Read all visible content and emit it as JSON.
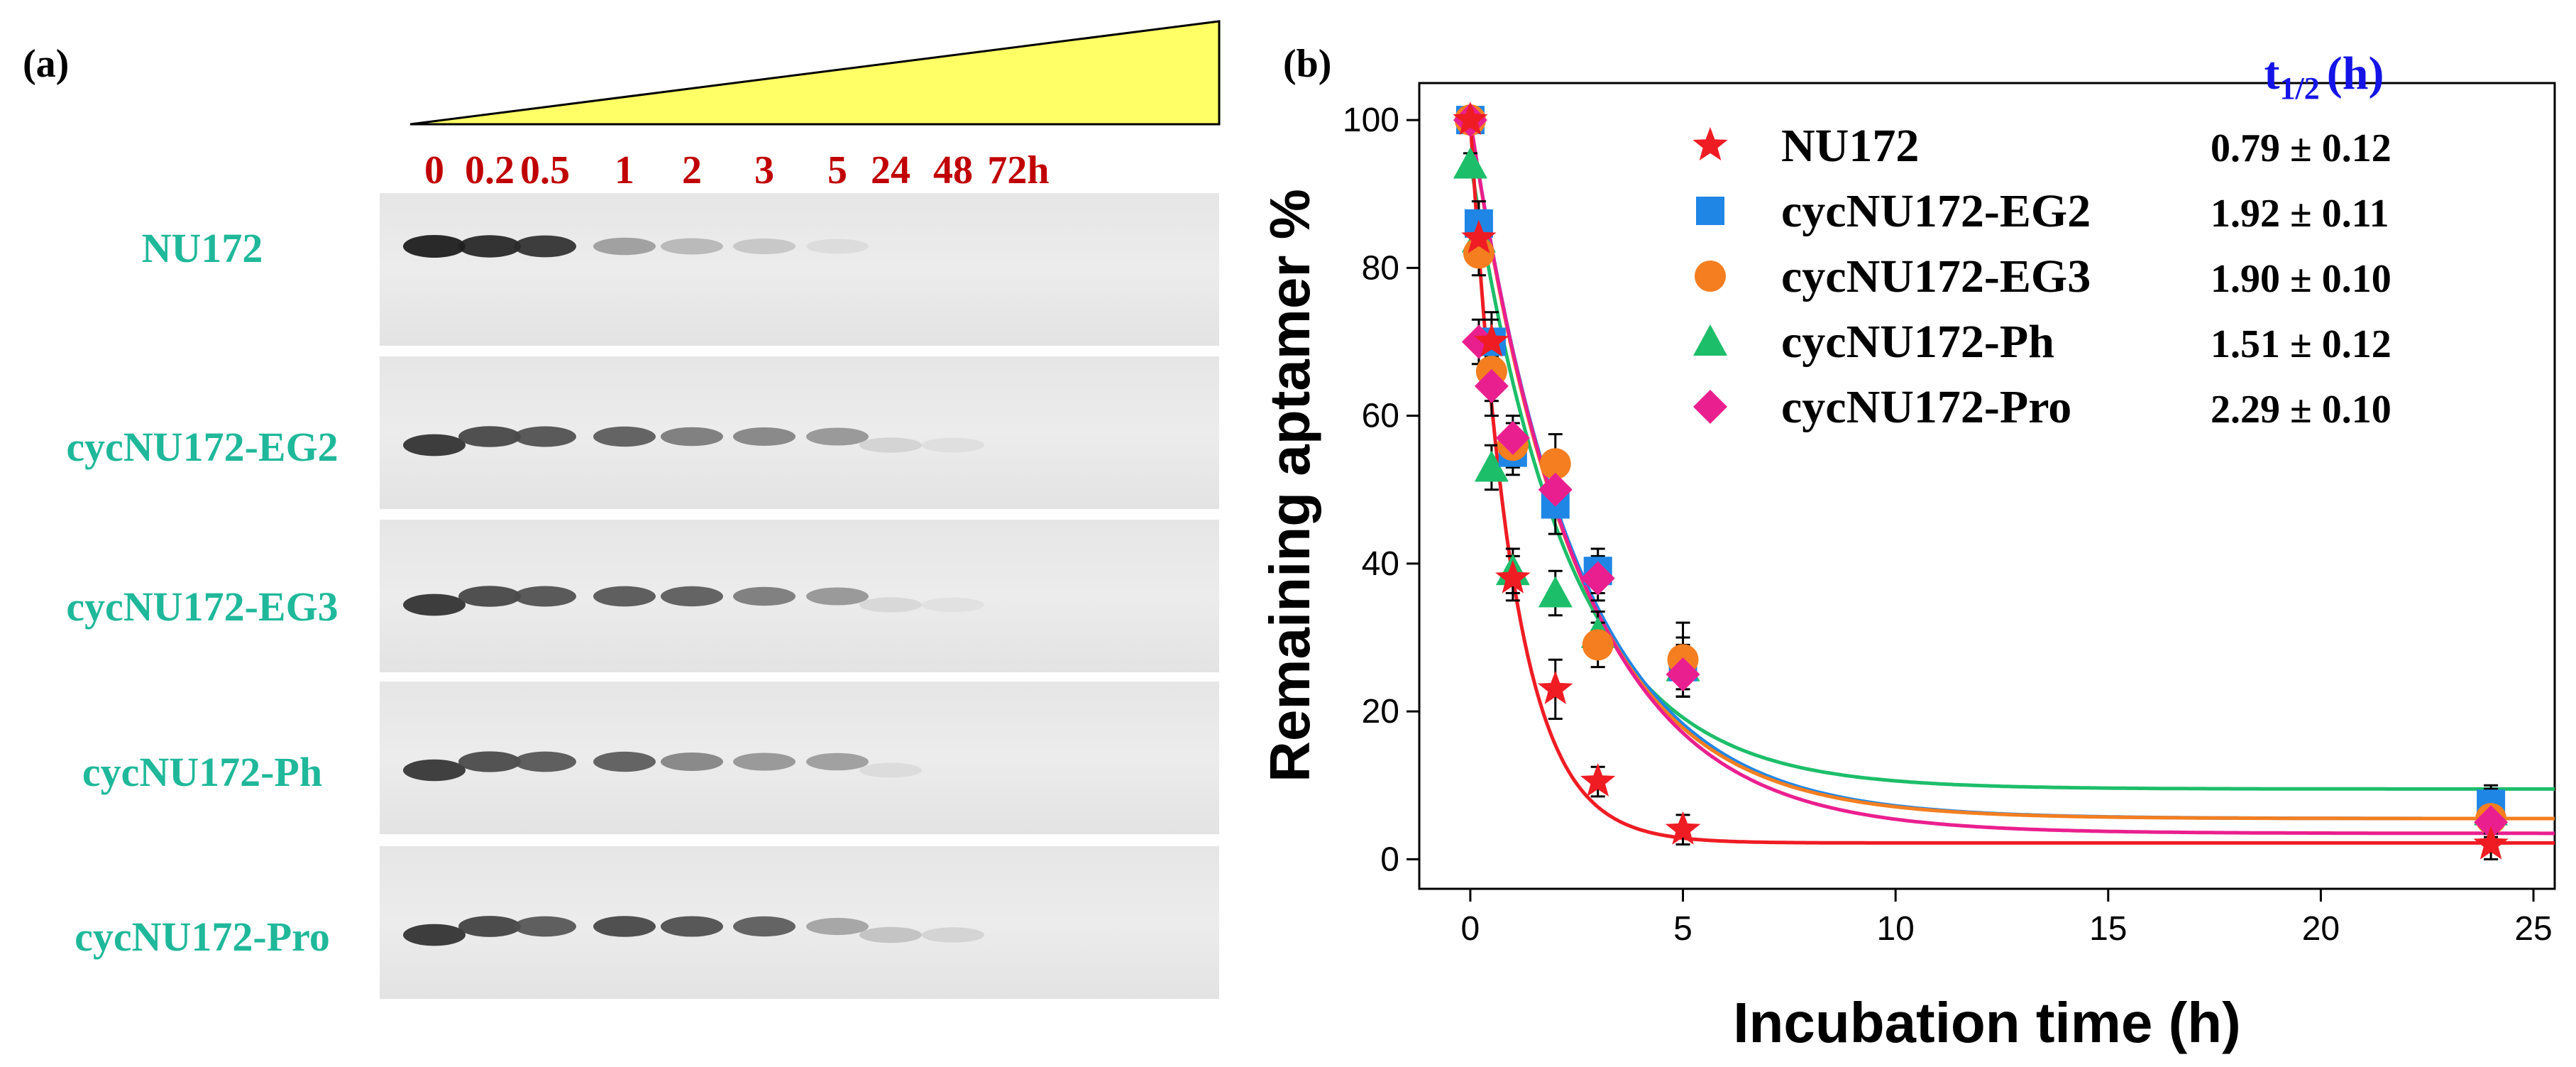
{
  "panel_a": {
    "label": "(a)",
    "time_labels": [
      "0",
      "0.2",
      "0.5",
      "1",
      "2",
      "3",
      "5",
      "24",
      "48",
      "72h"
    ],
    "gradient_color": "#ffff66",
    "time_label_color": "#c00000",
    "sample_label_color": "#1fb89a",
    "gels": [
      {
        "name": "NU172",
        "intensities": [
          1.0,
          0.95,
          0.9,
          0.38,
          0.25,
          0.18,
          0.08,
          0.0,
          0.0,
          0.0
        ]
      },
      {
        "name": "cycNU172-EG2",
        "intensities": [
          0.9,
          0.8,
          0.75,
          0.7,
          0.55,
          0.5,
          0.42,
          0.12,
          0.06,
          0.0
        ]
      },
      {
        "name": "cycNU172-EG3",
        "intensities": [
          0.9,
          0.8,
          0.75,
          0.72,
          0.7,
          0.55,
          0.42,
          0.1,
          0.05,
          0.0
        ]
      },
      {
        "name": "cycNU172-Ph",
        "intensities": [
          0.88,
          0.78,
          0.72,
          0.7,
          0.5,
          0.42,
          0.38,
          0.08,
          0.0,
          0.0
        ]
      },
      {
        "name": "cycNU172-Pro",
        "intensities": [
          0.9,
          0.82,
          0.72,
          0.8,
          0.76,
          0.7,
          0.35,
          0.2,
          0.12,
          0.0
        ]
      }
    ]
  },
  "chart_data": {
    "type": "scatter",
    "panel_label": "(b)",
    "xlabel": "Incubation time (h)",
    "ylabel": "Remaining aptamer %",
    "xlim": [
      -1.2,
      25.5
    ],
    "ylim": [
      -4,
      105
    ],
    "xticks": [
      0,
      5,
      10,
      15,
      20,
      25
    ],
    "yticks": [
      0,
      20,
      40,
      60,
      80,
      100
    ],
    "x": [
      0,
      0.2,
      0.5,
      1,
      2,
      3,
      5,
      24
    ],
    "legend_header": {
      "main": "t",
      "sub": "1/2",
      "unit": "(h)",
      "color": "#1414e6"
    },
    "series": [
      {
        "name": "NU172",
        "marker": "star",
        "color": "#ef1c24",
        "halflife": "0.79 ± 0.12",
        "y": [
          100,
          84,
          70,
          38,
          23,
          10.5,
          4,
          2
        ],
        "err": [
          1.5,
          3,
          3,
          3,
          4,
          2,
          2,
          2
        ],
        "fit": {
          "y0": 2.2,
          "A": 97.8,
          "tau": 1.0
        }
      },
      {
        "name": "cycNU172-EG2",
        "marker": "square",
        "color": "#1f86e6",
        "halflife": "1.92 ± 0.11",
        "y": [
          100,
          86,
          70,
          55,
          48,
          39,
          26,
          7.5
        ],
        "err": [
          1.5,
          3,
          4,
          3,
          4,
          3,
          4,
          2.5
        ],
        "fit": {
          "y0": 5.5,
          "A": 94.5,
          "tau": 2.5
        }
      },
      {
        "name": "cycNU172-EG3",
        "marker": "circle",
        "color": "#f47e20",
        "halflife": "1.90 ± 0.10",
        "y": [
          100,
          82,
          66,
          56,
          53.5,
          29,
          27,
          5.5
        ],
        "err": [
          1.5,
          3,
          4,
          3,
          4,
          3,
          5,
          2.5
        ],
        "fit": {
          "y0": 5.5,
          "A": 94.5,
          "tau": 2.45
        }
      },
      {
        "name": "cycNU172-Ph",
        "marker": "triangle",
        "color": "#1dbe6a",
        "halflife": "1.51 ± 0.12",
        "y": [
          94,
          84,
          53,
          39,
          36,
          30.5,
          26,
          6.5
        ],
        "err": [
          1.5,
          3,
          3,
          3,
          3,
          3,
          3,
          3
        ],
        "fit": {
          "y0": 9.5,
          "A": 85.0,
          "tau": 2.3
        }
      },
      {
        "name": "cycNU172-Pro",
        "marker": "diamond",
        "color": "#ea1f8f",
        "halflife": "2.29 ± 0.10",
        "y": [
          100,
          70,
          64,
          57,
          50,
          38,
          25,
          5
        ],
        "err": [
          1.5,
          3,
          4,
          3,
          3,
          3,
          3,
          2.5
        ],
        "fit": {
          "y0": 3.5,
          "A": 96.5,
          "tau": 2.55
        }
      }
    ]
  }
}
